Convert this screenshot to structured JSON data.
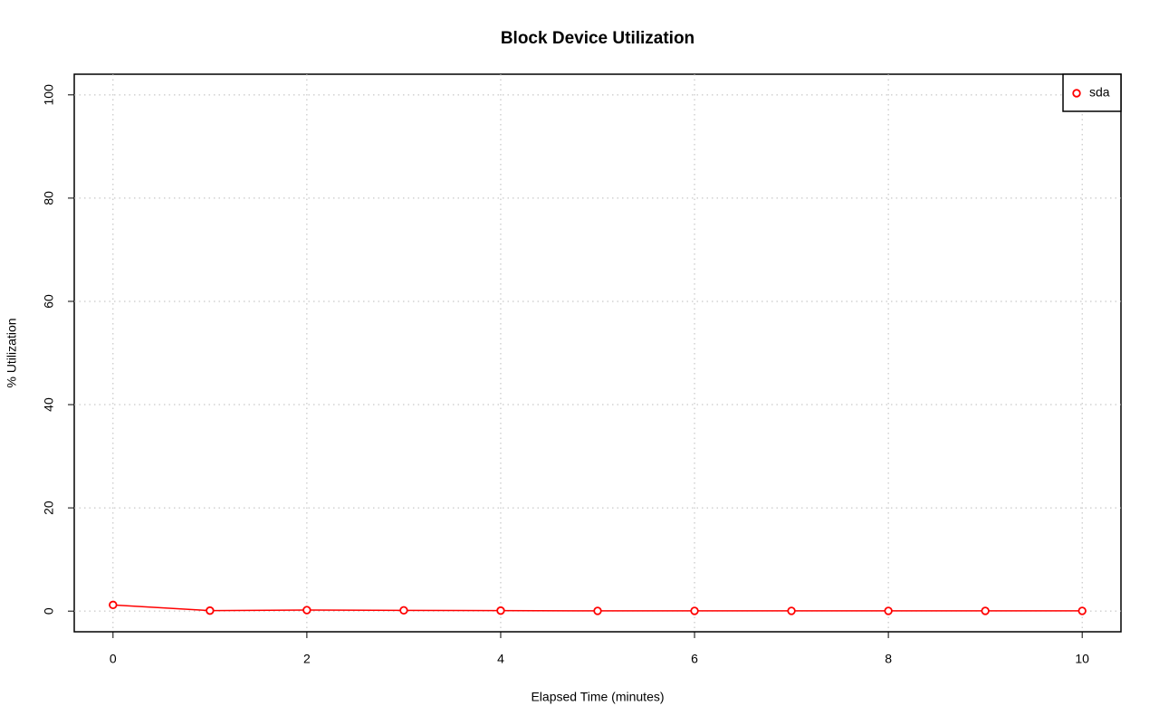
{
  "chart_data": {
    "type": "line",
    "title": "Block Device Utilization",
    "x_label": "Elapsed Time (minutes)",
    "y_label": "% Utilization",
    "x": [
      0,
      1,
      2,
      3,
      4,
      5,
      6,
      7,
      8,
      9,
      10
    ],
    "series": [
      {
        "name": "sda",
        "color": "#ff0000",
        "values": [
          1.2,
          0.1,
          0.2,
          0.15,
          0.1,
          0.05,
          0.05,
          0.05,
          0.05,
          0.05,
          0.05
        ]
      }
    ],
    "xlim": [
      -0.4,
      10.4
    ],
    "xticks": [
      0,
      2,
      4,
      6,
      8,
      10
    ],
    "ylim": [
      -4,
      104
    ],
    "yticks": [
      0,
      20,
      40,
      60,
      80,
      100
    ],
    "grid": true,
    "legend": "top-right"
  }
}
